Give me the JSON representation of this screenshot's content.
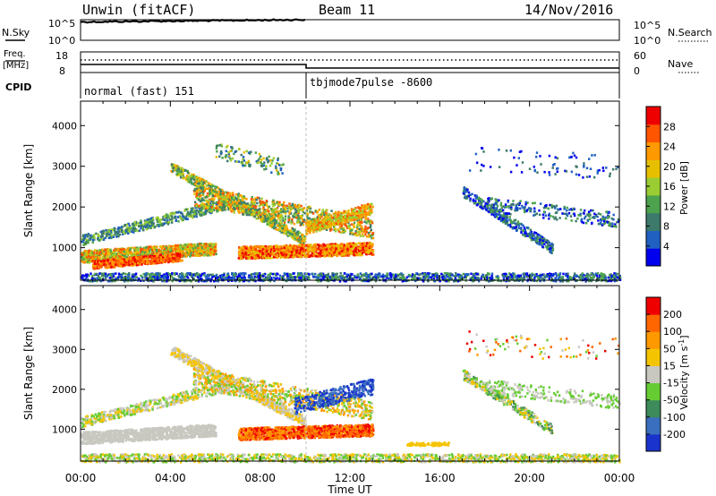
{
  "header": {
    "station": "Unwin (fitACF)",
    "beam": "Beam 11",
    "date": "14/Nov/2016"
  },
  "nsky_panel": {
    "label": "N.Sky",
    "ticks_left": [
      "10^5",
      "10^0"
    ],
    "ticks_right": [
      "10^5",
      "10^0"
    ],
    "right_label": "N.Search"
  },
  "freq_panel": {
    "label_line1": "Freq.",
    "label_line2": "[MHz]",
    "ticks_left": [
      "18",
      "8"
    ],
    "ticks_right": [
      "60",
      "0"
    ],
    "right_label": "Nave"
  },
  "cpid_panel": {
    "label": "CPID",
    "segments": [
      "normal (fast) 151",
      "tbjmode7pulse -8600"
    ]
  },
  "chart_data": [
    {
      "type": "heatmap",
      "quantity": "Power",
      "ylabel": "Slant Range [km]",
      "xlabel": "Time UT",
      "yticks": [
        "1000",
        "2000",
        "3000",
        "4000"
      ],
      "ylim": [
        200,
        4600
      ],
      "xlim_hours": [
        0,
        24
      ],
      "colorbar": {
        "label": "Power [dB]",
        "ticks": [
          "4",
          "8",
          "12",
          "16",
          "20",
          "24",
          "28"
        ],
        "colors": [
          "#0000ee",
          "#2060c0",
          "#3d7a6b",
          "#4da24d",
          "#9acd32",
          "#e6c000",
          "#ff9900",
          "#ff5500",
          "#ee0000"
        ]
      }
    },
    {
      "type": "heatmap",
      "quantity": "Velocity",
      "ylabel": "Slant Range [km]",
      "xlabel": "Time UT",
      "yticks": [
        "1000",
        "2000",
        "3000",
        "4000"
      ],
      "ylim": [
        200,
        4600
      ],
      "xlim_hours": [
        0,
        24
      ],
      "colorbar": {
        "label": "Velocity [m s",
        "label_superscript": "-1",
        "label_close": "]",
        "ticks": [
          "200",
          "100",
          "50",
          "15",
          "-15",
          "-50",
          "-100",
          "-200"
        ],
        "colors": [
          "#1a33cc",
          "#3a6fbf",
          "#3d8a5a",
          "#66cc33",
          "#c8c8c0",
          "#f5c400",
          "#ff9900",
          "#ff6600",
          "#ee0000"
        ]
      }
    }
  ],
  "xaxis": {
    "ticks": [
      "00:00",
      "04:00",
      "08:00",
      "12:00",
      "16:00",
      "20:00",
      "00:00"
    ],
    "label": "Time UT"
  }
}
